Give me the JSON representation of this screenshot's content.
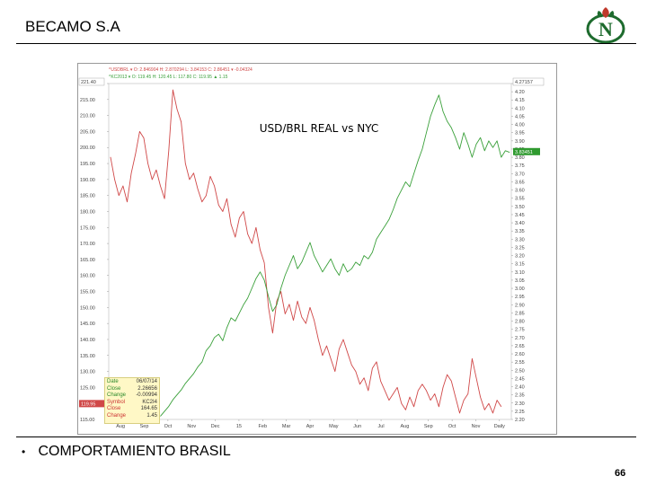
{
  "header": {
    "company": "BECAMO S.A"
  },
  "chart_data": {
    "type": "line",
    "title": "USD/BRL REAL vs NYC",
    "legend_lines": [
      {
        "text": "^USDBRL ▾ O: 2.846904 H: 2.870294 L: 3.84153 C: 2.86451 ▾ -0.04324",
        "color": "#d04848"
      },
      {
        "text": "^KC2013 ▾ O: 119.45 H: 120.45 L: 117.80 C: 119.95 ▲ 1.15",
        "color": "#3aa03a"
      }
    ],
    "x_ticks": [
      "Aug",
      "Sep",
      "Oct",
      "Nov",
      "Dec",
      "15",
      "Feb",
      "Mar",
      "Apr",
      "May",
      "Jun",
      "Jul",
      "Aug",
      "Sep",
      "Oct",
      "Nov",
      "Daily"
    ],
    "left_axis": {
      "min": 115,
      "max": 220,
      "ticks": [
        "220.00",
        "215.00",
        "210.00",
        "205.00",
        "200.00",
        "195.00",
        "190.00",
        "185.00",
        "180.00",
        "175.00",
        "170.00",
        "165.00",
        "160.00",
        "155.00",
        "150.00",
        "145.00",
        "140.00",
        "135.00",
        "130.00",
        "125.00",
        "120.00",
        "115.00"
      ],
      "top_label": "221.40",
      "current_label": "119.95"
    },
    "right_axis": {
      "min": 2.2,
      "max": 4.25,
      "ticks": [
        "4.25",
        "4.20",
        "4.15",
        "4.10",
        "4.05",
        "4.00",
        "3.95",
        "3.90",
        "3.85",
        "3.80",
        "3.75",
        "3.70",
        "3.65",
        "3.60",
        "3.55",
        "3.50",
        "3.45",
        "3.40",
        "3.35",
        "3.30",
        "3.25",
        "3.20",
        "3.15",
        "3.10",
        "3.05",
        "3.00",
        "2.95",
        "2.90",
        "2.85",
        "2.80",
        "2.75",
        "2.70",
        "2.65",
        "2.60",
        "2.55",
        "2.50",
        "2.45",
        "2.40",
        "2.35",
        "2.30",
        "2.25",
        "2.20"
      ],
      "top_label": "4.27157",
      "current_label": "3.83451"
    },
    "series": [
      {
        "axis": "left",
        "color": "#d04848",
        "x": [
          0,
          5,
          10,
          15,
          20,
          25,
          30,
          35,
          40,
          45,
          50,
          55,
          60,
          65,
          70,
          75,
          80,
          85,
          90,
          95,
          100,
          105,
          110,
          115,
          120,
          125,
          130,
          135,
          140,
          145,
          150,
          155,
          160,
          165,
          170,
          175,
          180,
          185,
          190,
          195,
          200,
          205,
          210,
          215,
          220,
          225,
          230,
          235,
          240,
          245,
          250,
          255,
          260,
          265,
          270,
          275,
          280,
          285,
          290,
          295,
          300,
          305,
          310,
          315,
          320,
          325,
          330,
          335,
          340,
          345,
          350,
          355,
          360,
          365,
          370,
          375,
          380,
          385,
          390,
          395,
          400,
          405,
          410,
          415,
          420,
          425,
          430,
          435,
          440,
          445,
          450,
          455,
          460,
          465,
          470
        ],
        "values": [
          197,
          190,
          185,
          188,
          183,
          192,
          198,
          205,
          203,
          195,
          190,
          193,
          188,
          184,
          199,
          218,
          212,
          208,
          195,
          190,
          192,
          187,
          183,
          185,
          191,
          188,
          182,
          180,
          184,
          176,
          172,
          178,
          180,
          173,
          170,
          175,
          168,
          164,
          150,
          142,
          152,
          155,
          148,
          151,
          146,
          152,
          147,
          145,
          150,
          146,
          140,
          135,
          138,
          134,
          130,
          137,
          140,
          136,
          132,
          130,
          126,
          128,
          124,
          131,
          133,
          127,
          124,
          121,
          123,
          125,
          120,
          118,
          122,
          119,
          124,
          126,
          124,
          121,
          123,
          119,
          125,
          129,
          127,
          122,
          117,
          121,
          123,
          134,
          128,
          122,
          118,
          120,
          117,
          121,
          119
        ]
      },
      {
        "axis": "right",
        "color": "#3aa03a",
        "x": [
          60,
          65,
          70,
          75,
          80,
          85,
          90,
          95,
          100,
          105,
          110,
          115,
          120,
          125,
          130,
          135,
          140,
          145,
          150,
          155,
          160,
          165,
          170,
          175,
          180,
          185,
          190,
          195,
          200,
          205,
          210,
          215,
          220,
          225,
          230,
          235,
          240,
          245,
          250,
          255,
          260,
          265,
          270,
          275,
          280,
          285,
          290,
          295,
          300,
          305,
          310,
          315,
          320,
          325,
          330,
          335,
          340,
          345,
          350,
          355,
          360,
          365,
          370,
          375,
          380,
          385,
          390,
          395,
          400,
          405,
          410,
          415,
          420,
          425,
          430,
          435,
          440,
          445,
          450,
          455,
          460,
          465,
          470,
          475,
          480
        ],
        "values": [
          2.22,
          2.25,
          2.28,
          2.32,
          2.35,
          2.38,
          2.42,
          2.45,
          2.48,
          2.52,
          2.55,
          2.62,
          2.65,
          2.7,
          2.72,
          2.68,
          2.76,
          2.82,
          2.8,
          2.85,
          2.9,
          2.94,
          3.0,
          3.06,
          3.1,
          3.05,
          2.95,
          2.86,
          2.9,
          3.0,
          3.08,
          3.14,
          3.2,
          3.12,
          3.16,
          3.22,
          3.28,
          3.2,
          3.15,
          3.1,
          3.14,
          3.18,
          3.12,
          3.08,
          3.15,
          3.1,
          3.12,
          3.16,
          3.14,
          3.2,
          3.18,
          3.22,
          3.3,
          3.34,
          3.38,
          3.42,
          3.48,
          3.55,
          3.6,
          3.65,
          3.62,
          3.7,
          3.78,
          3.85,
          3.95,
          4.05,
          4.12,
          4.18,
          4.08,
          4.02,
          3.98,
          3.92,
          3.85,
          3.95,
          3.88,
          3.8,
          3.88,
          3.92,
          3.84,
          3.9,
          3.86,
          3.9,
          3.8,
          3.84,
          3.83
        ]
      }
    ],
    "info_box": [
      {
        "k": "Date",
        "v": "06/07/14"
      },
      {
        "k": "Close",
        "v": "2.26656"
      },
      {
        "k": "Change",
        "v": "-0.00994"
      },
      {
        "k": "Symbol",
        "v": "KC2I4"
      },
      {
        "k": "Close",
        "v": "164.65"
      },
      {
        "k": "Change",
        "v": "1.45"
      }
    ]
  },
  "footer": {
    "bullet": "COMPORTAMIENTO BRASIL",
    "page": "66"
  }
}
